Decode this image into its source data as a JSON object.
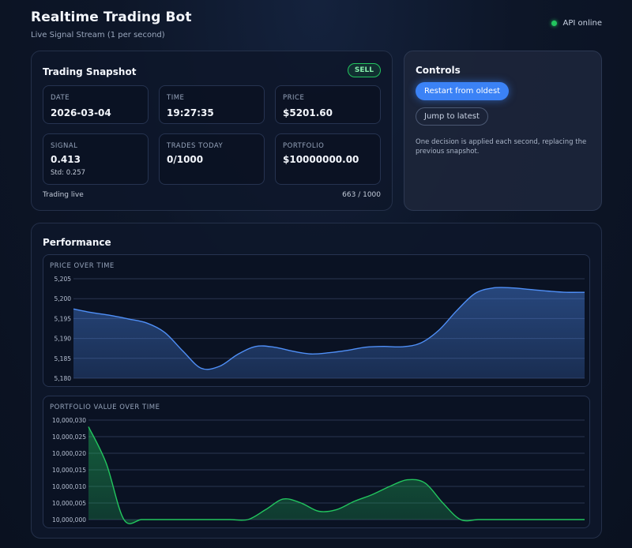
{
  "app": {
    "title": "Realtime Trading Bot",
    "subtitle": "Live Signal Stream (1 per second)",
    "status": "API online",
    "status_color": "#22c55e"
  },
  "snapshot": {
    "title": "Trading Snapshot",
    "badge": "SELL",
    "tiles": {
      "date": {
        "label": "DATE",
        "value": "2026-03-04"
      },
      "time": {
        "label": "TIME",
        "value": "19:27:35"
      },
      "price": {
        "label": "PRICE",
        "value": "$5201.60"
      },
      "signal": {
        "label": "SIGNAL",
        "value": "0.413",
        "sub": "Std: 0.257"
      },
      "trades": {
        "label": "TRADES TODAY",
        "value": "0/1000"
      },
      "portfolio": {
        "label": "PORTFOLIO",
        "value": "$10000000.00"
      }
    },
    "footer_left": "Trading live",
    "footer_right": "663 / 1000"
  },
  "controls": {
    "title": "Controls",
    "restart_label": "Restart from oldest",
    "jump_label": "Jump to latest",
    "note": "One decision is applied each second, replacing the previous snapshot."
  },
  "performance": {
    "title": "Performance"
  },
  "chart_data": [
    {
      "type": "area",
      "title": "PRICE OVER TIME",
      "color": "#4f8ff7",
      "ylim": [
        5180,
        5205
      ],
      "yticks": [
        5180,
        5185,
        5190,
        5195,
        5200,
        5205
      ],
      "ytick_labels": [
        "5,180",
        "5,185",
        "5,190",
        "5,195",
        "5,200",
        "5,205"
      ],
      "x": [
        0,
        1,
        2,
        3,
        4,
        5,
        6,
        7,
        8,
        9,
        10,
        11,
        12,
        13,
        14,
        15,
        16,
        17,
        18,
        19,
        20,
        21,
        22,
        23,
        24,
        25,
        26,
        27,
        28
      ],
      "values": [
        5197.4,
        5196.5,
        5195.8,
        5194.9,
        5193.9,
        5191.5,
        5186.8,
        5182.5,
        5183.0,
        5186.0,
        5188.0,
        5187.8,
        5186.8,
        5186.1,
        5186.4,
        5187.0,
        5187.8,
        5188.0,
        5187.9,
        5188.8,
        5192.0,
        5197.0,
        5201.3,
        5202.7,
        5202.7,
        5202.3,
        5201.9,
        5201.6,
        5201.6
      ],
      "grid": true
    },
    {
      "type": "area",
      "title": "PORTFOLIO VALUE OVER TIME",
      "color": "#22c55e",
      "ylim": [
        10000000,
        10000030
      ],
      "yticks": [
        10000000,
        10000005,
        10000010,
        10000015,
        10000020,
        10000025,
        10000030
      ],
      "ytick_labels": [
        "10,000,000",
        "10,000,005",
        "10,000,010",
        "10,000,015",
        "10,000,020",
        "10,000,025",
        "10,000,030"
      ],
      "x": [
        0,
        1,
        2,
        3,
        4,
        5,
        6,
        7,
        8,
        9,
        10,
        11,
        12,
        13,
        14,
        15,
        16,
        17,
        18,
        19,
        20,
        21,
        22,
        23,
        24,
        25,
        26,
        27,
        28
      ],
      "values": [
        10000028,
        10000017,
        10000000,
        10000000,
        10000000,
        10000000,
        10000000,
        10000000,
        10000000,
        10000000,
        10000003,
        10000006.2,
        10000005,
        10000002.5,
        10000003,
        10000005.5,
        10000007.5,
        10000010,
        10000012,
        10000011,
        10000005,
        10000000,
        10000000,
        10000000,
        10000000,
        10000000,
        10000000,
        10000000,
        10000000
      ],
      "grid": true
    }
  ]
}
